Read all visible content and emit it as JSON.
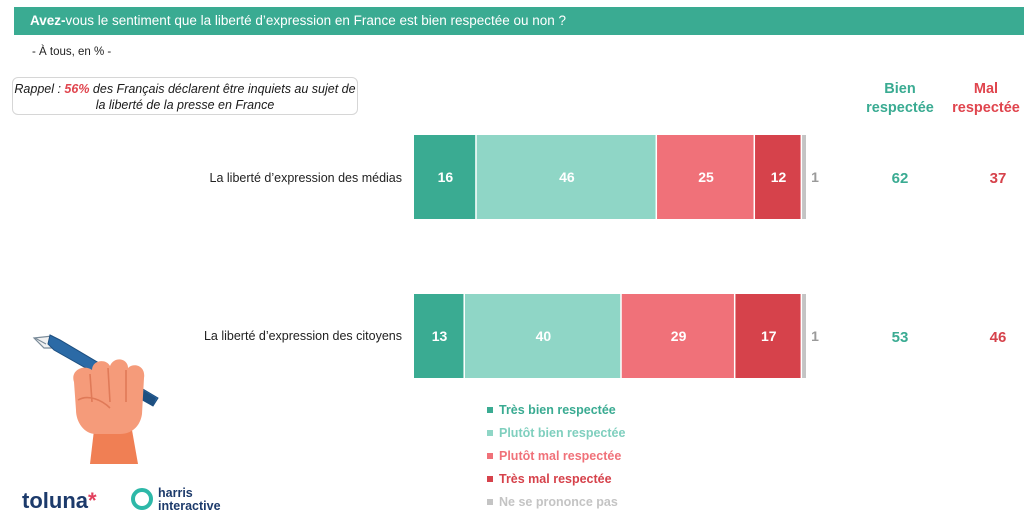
{
  "header": {
    "title_bold": "Avez-",
    "title_rest": "vous le sentiment que la liberté d’expression en France est bien respectée ou non ?"
  },
  "subtitle": "- À tous, en % -",
  "rappel": {
    "prefix": "Rappel : ",
    "pct": "56%",
    "suffix": " des Français déclarent être inquiets au sujet de la liberté de la presse en France"
  },
  "columns": {
    "bien": [
      "Bien",
      "respectée"
    ],
    "mal": [
      "Mal",
      "respectée"
    ]
  },
  "colors": {
    "tres_bien": "#3aab92",
    "plutot_bien": "#8fd6c6",
    "plutot_mal": "#f07179",
    "tres_mal": "#d6424b",
    "nsp": "#c4c4c4"
  },
  "chart_data": {
    "type": "bar",
    "orientation": "horizontal",
    "stacked": true,
    "categories": [
      "La liberté d’expression des médias",
      "La liberté d’expression des citoyens"
    ],
    "series": [
      {
        "name": "Très bien respectée",
        "color": "#3aab92",
        "values": [
          16,
          13
        ]
      },
      {
        "name": "Plutôt bien respectée",
        "color": "#8fd6c6",
        "values": [
          46,
          40
        ]
      },
      {
        "name": "Plutôt mal respectée",
        "color": "#f07179",
        "values": [
          25,
          29
        ]
      },
      {
        "name": "Très mal respectée",
        "color": "#d6424b",
        "values": [
          12,
          17
        ]
      },
      {
        "name": "Ne se prononce pas",
        "color": "#c4c4c4",
        "values": [
          1,
          1
        ]
      }
    ],
    "totals": {
      "bien_respectee": [
        62,
        53
      ],
      "mal_respectee": [
        37,
        46
      ]
    },
    "legend_position": "bottom"
  }
}
